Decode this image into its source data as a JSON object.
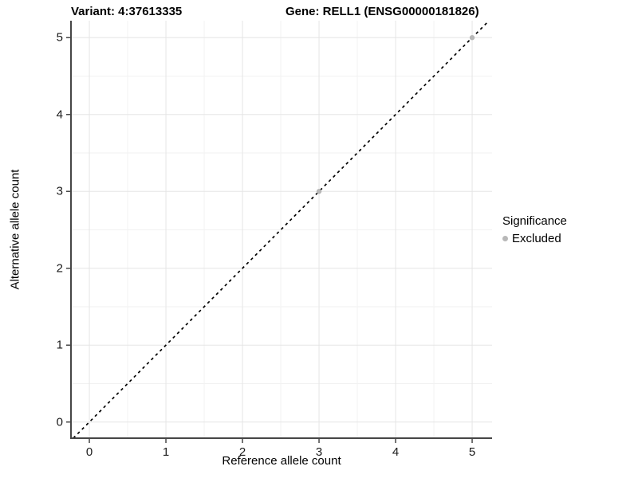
{
  "figure": {
    "title_left": "Variant: 4:37613335",
    "title_right": "Gene: RELL1 (ENSG00000181826)"
  },
  "axes": {
    "x": {
      "label": "Reference allele count",
      "ticks": [
        0,
        1,
        2,
        3,
        4,
        5
      ]
    },
    "y": {
      "label": "Alternative allele count",
      "ticks": [
        0,
        1,
        2,
        3,
        4,
        5
      ]
    }
  },
  "legend": {
    "title": "Significance",
    "items": [
      {
        "label": "Excluded",
        "color": "#b8b8b8"
      }
    ]
  },
  "chart_data": {
    "type": "scatter",
    "title": "Variant: 4:37613335 | Gene: RELL1 (ENSG00000181826)",
    "xlabel": "Reference allele count",
    "ylabel": "Alternative allele count",
    "xlim": [
      -0.24,
      5.26
    ],
    "ylim": [
      -0.21,
      5.22
    ],
    "x_ticks": [
      0,
      1,
      2,
      3,
      4,
      5
    ],
    "y_ticks": [
      0,
      1,
      2,
      3,
      4,
      5
    ],
    "series": [
      {
        "name": "Excluded",
        "color": "#b8b8b8",
        "points": [
          [
            3,
            3
          ],
          [
            5,
            5
          ]
        ]
      }
    ],
    "reference_line": {
      "type": "identity",
      "style": "dashed",
      "color": "#000000"
    },
    "grid": {
      "major": [
        0,
        1,
        2,
        3,
        4,
        5
      ],
      "minor": [
        0.5,
        1.5,
        2.5,
        3.5,
        4.5
      ],
      "major_color": "#e5e5e5",
      "minor_color": "#f2f2f2"
    },
    "legend_position": "right",
    "axis_line_color": "#464646",
    "point_radius": 3.2
  }
}
